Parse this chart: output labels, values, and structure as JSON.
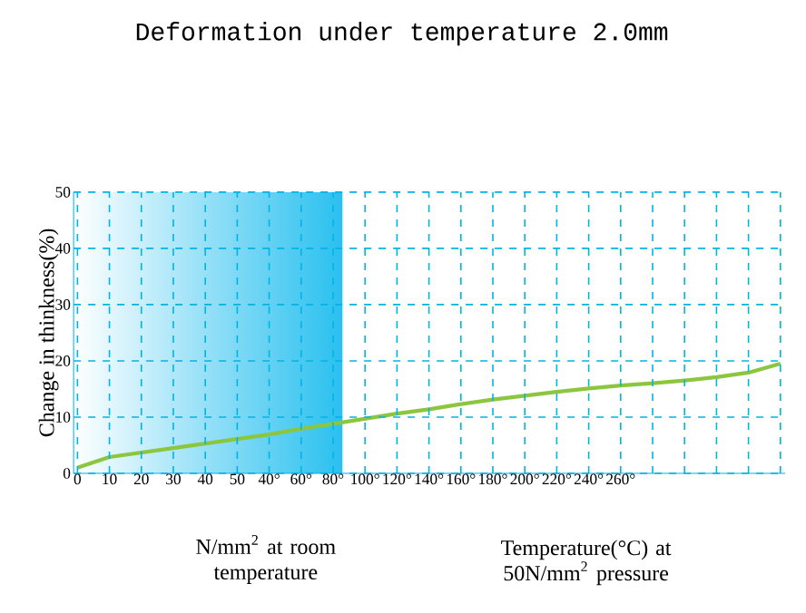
{
  "chart_data": {
    "type": "line",
    "title": "Deformation under temperature 2.0mm",
    "ylabel": "Change in thinkness(%)",
    "annotations": [
      "N/mm$^{2}$ at room temperature",
      "Temperature(°C) at 50N/mm$^{2}$ pressure"
    ],
    "categories": [
      "0",
      "10",
      "20",
      "30",
      "40",
      "50",
      "40°",
      "60°",
      "80°",
      "100°",
      "120°",
      "140°",
      "160°",
      "180°",
      "200°",
      "220°",
      "240°",
      "260°",
      null,
      null,
      null,
      null,
      null
    ],
    "series": [
      {
        "color": "#8cc63f",
        "values": [
          1.0,
          2.9,
          3.7,
          4.5,
          5.3,
          6.1,
          6.9,
          7.9,
          8.8,
          9.7,
          10.6,
          11.4,
          12.3,
          13.1,
          13.8,
          14.5,
          15.1,
          15.6,
          16.0,
          16.5,
          17.1,
          17.9,
          19.5
        ]
      }
    ],
    "ylim": [
      0,
      50
    ],
    "yticks": [
      0,
      10,
      20,
      30,
      40,
      50
    ],
    "bands": [
      {
        "axis": "x",
        "from": "0",
        "to": "80°",
        "color": "#29c0ef"
      }
    ],
    "grid": true,
    "marker": "none",
    "line_style": "solid"
  }
}
